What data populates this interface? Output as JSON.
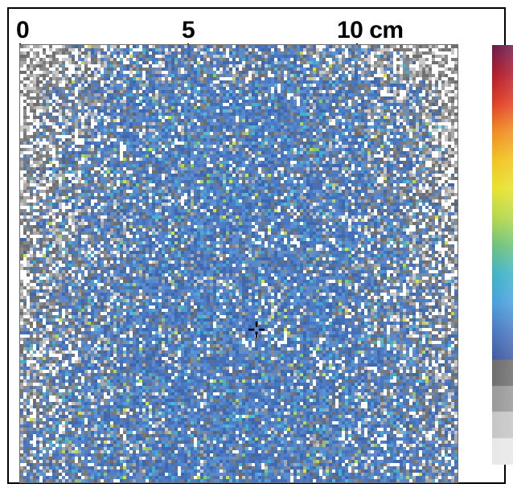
{
  "scale": {
    "labels": [
      "0",
      "5",
      "10 cm"
    ],
    "values_cm": [
      0,
      5,
      10
    ]
  },
  "map": {
    "width_cm": 13,
    "height_cm": 13,
    "dominant_color": "#4a78c0",
    "marker": "crosshair-icon"
  },
  "colorbar": {
    "stops": [
      "#6a1a4c",
      "#b01a2a",
      "#e03b24",
      "#f08a1e",
      "#f2c21e",
      "#e8e32a",
      "#b6d84a",
      "#6cc27a",
      "#3fb3c8",
      "#4aa0dc",
      "#4a78c0",
      "#3f5aa0",
      "#6e6e6e",
      "#9a9a9a",
      "#c6c6c6",
      "#e8e8e8"
    ]
  }
}
